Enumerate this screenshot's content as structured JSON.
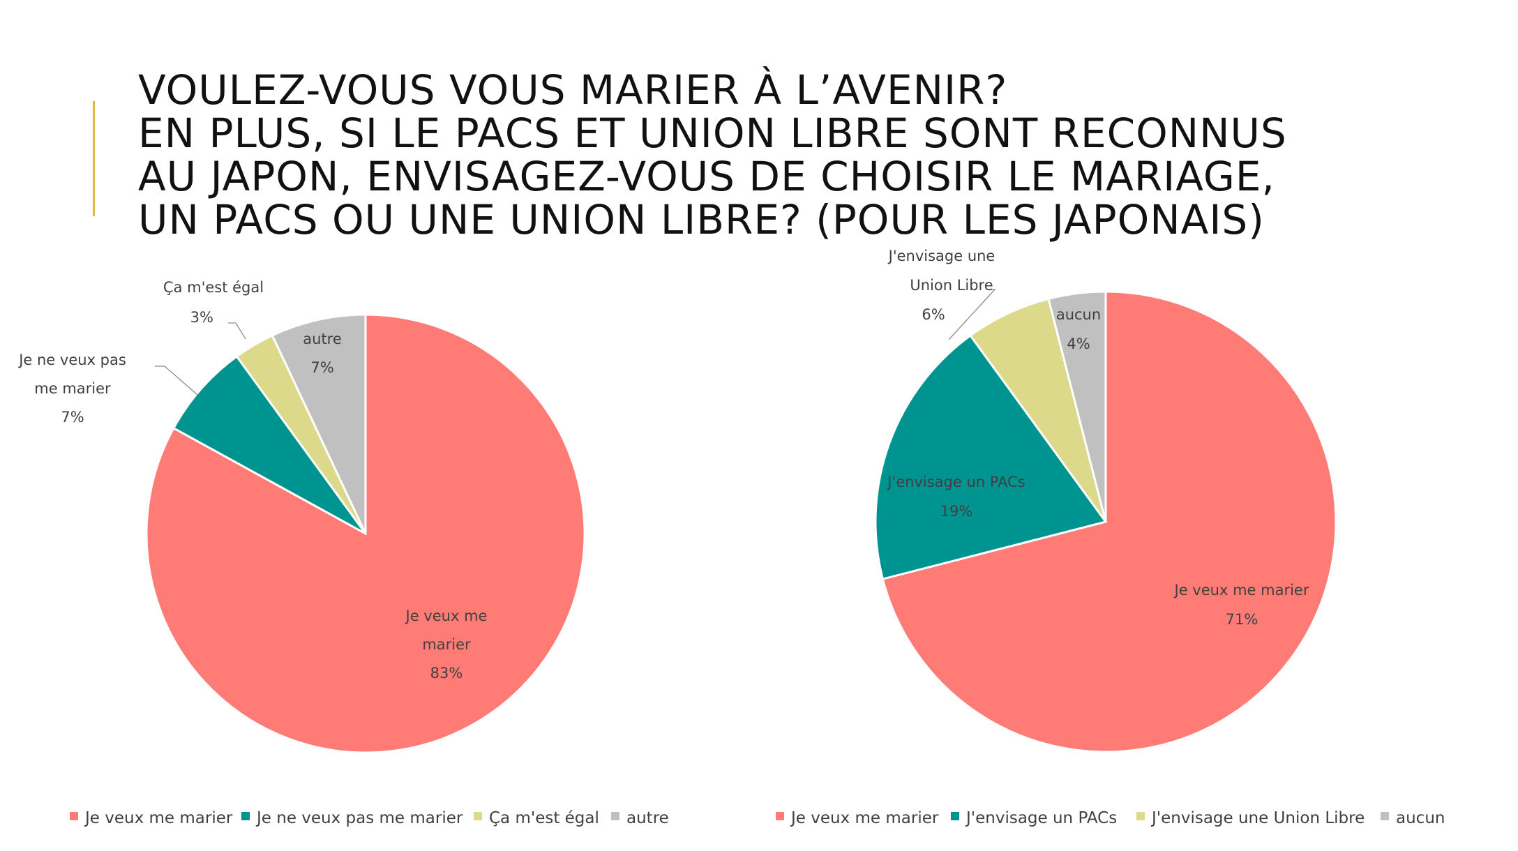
{
  "title": {
    "lines": [
      "VOULEZ-VOUS VOUS MARIER À L’AVENIR?",
      "EN PLUS,  SI LE PACS ET UNION LIBRE SONT RECONNUS",
      "AU JAPON, ENVISAGEZ-VOUS DE CHOISIR LE MARIAGE,",
      "UN PACS OU UNE UNION LIBRE? (POUR LES JAPONAIS)"
    ]
  },
  "colors": {
    "accent_bar": "#e2b93b",
    "coral": "#ff7c76",
    "teal": "#009491",
    "khaki": "#dcd98a",
    "gray": "#c0c0c0"
  },
  "chart_data": [
    {
      "type": "pie",
      "legend_position": "bottom",
      "slices": [
        {
          "name": "Je veux me marier",
          "value": 83,
          "label": "83%",
          "color": "#ff7c76"
        },
        {
          "name": "Je ne veux pas me marier",
          "value": 7,
          "label": "7%",
          "color": "#009491"
        },
        {
          "name": "Ça m'est égal",
          "value": 3,
          "label": "3%",
          "color": "#dcd98a"
        },
        {
          "name": "autre",
          "value": 7,
          "label": "7%",
          "color": "#c0c0c0"
        }
      ]
    },
    {
      "type": "pie",
      "legend_position": "bottom",
      "slices": [
        {
          "name": "Je veux me marier",
          "value": 71,
          "label": "71%",
          "color": "#ff7c76"
        },
        {
          "name": "J'envisage un PACs",
          "value": 19,
          "label": "19%",
          "color": "#009491"
        },
        {
          "name": "J'envisage une Union Libre",
          "value": 6,
          "label": "6%",
          "color": "#dcd98a"
        },
        {
          "name": "aucun",
          "value": 4,
          "label": "4%",
          "color": "#c0c0c0"
        }
      ]
    }
  ],
  "slice_labels": [
    [
      [
        "Je veux me",
        "marier",
        "83%"
      ],
      [
        "Je ne veux pas",
        "me marier",
        "7%"
      ],
      [
        "Ça m'est égal",
        "3%"
      ],
      [
        "autre",
        "7%"
      ]
    ],
    [
      [
        "Je veux me marier",
        "71%"
      ],
      [
        "J'envisage un PACs",
        "19%"
      ],
      [
        "J'envisage une",
        "Union Libre",
        "6%"
      ],
      [
        "aucun",
        "4%"
      ]
    ]
  ]
}
